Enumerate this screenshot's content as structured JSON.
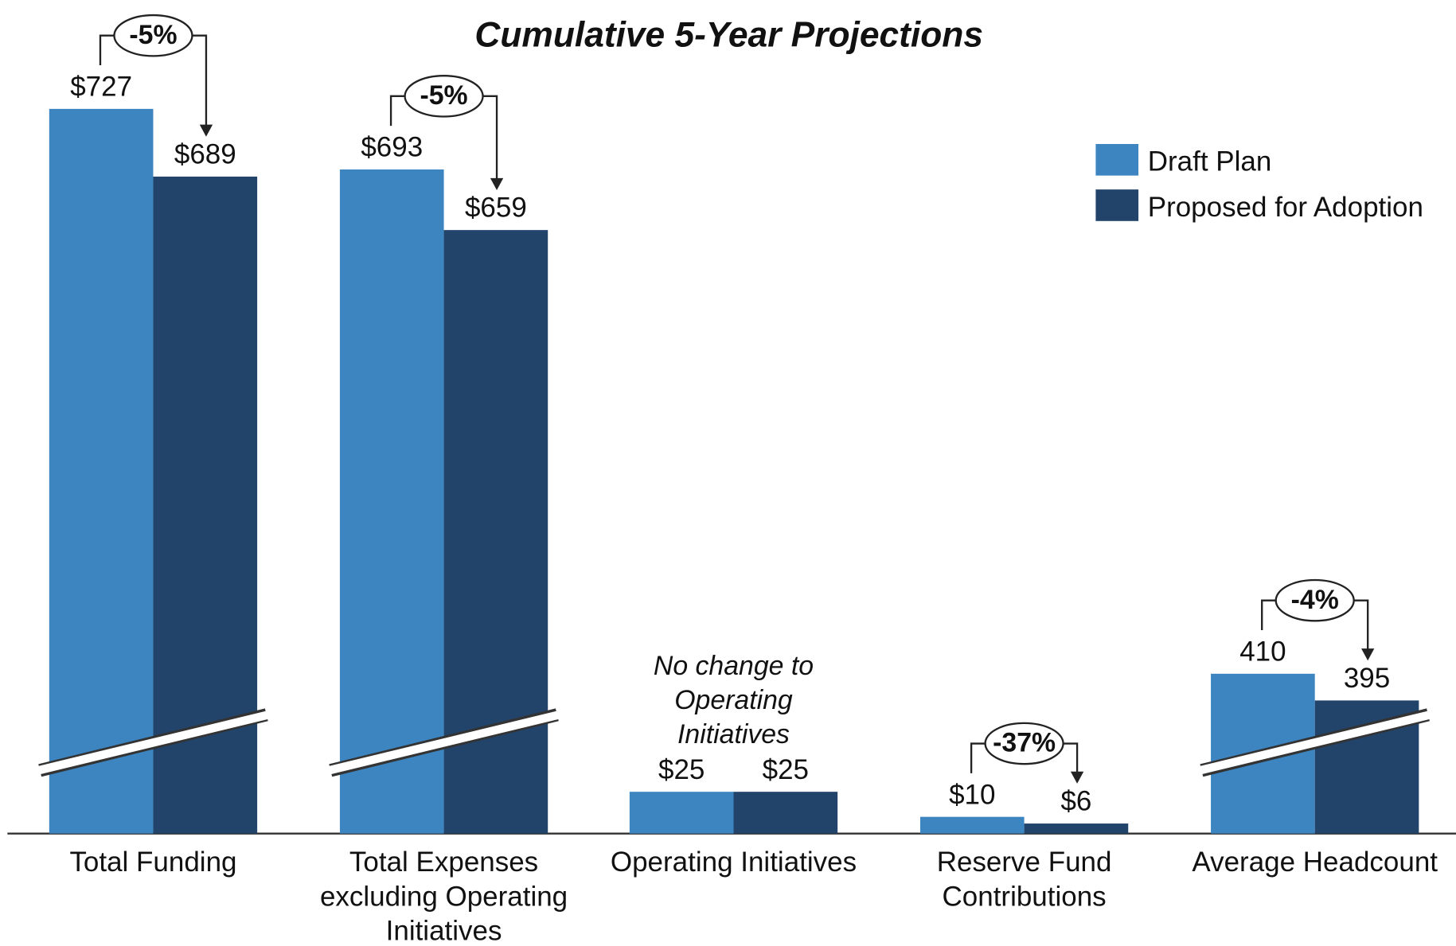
{
  "chart_data": {
    "type": "bar",
    "title": "Cumulative 5-Year Projections",
    "categories": [
      "Total Funding",
      "Total Expenses excluding Operating Initiatives",
      "Operating Initiatives",
      "Reserve Fund Contributions",
      "Average Headcount"
    ],
    "series": [
      {
        "name": "Draft Plan",
        "color": "#3d85c1",
        "values": [
          727,
          693,
          25,
          10,
          410
        ],
        "value_labels": [
          "$727",
          "$693",
          "$25",
          "$10",
          "410"
        ]
      },
      {
        "name": "Proposed for Adoption",
        "color": "#22436a",
        "values": [
          689,
          659,
          25,
          6,
          395
        ],
        "value_labels": [
          "$689",
          "$659",
          "$25",
          "$6",
          "395"
        ]
      }
    ],
    "change_labels": [
      "-5%",
      "-5%",
      null,
      "-37%",
      "-4%"
    ],
    "annotations": [
      {
        "text": "No change to Operating Initiatives"
      }
    ],
    "axis_break": true,
    "legend": "upper right"
  }
}
